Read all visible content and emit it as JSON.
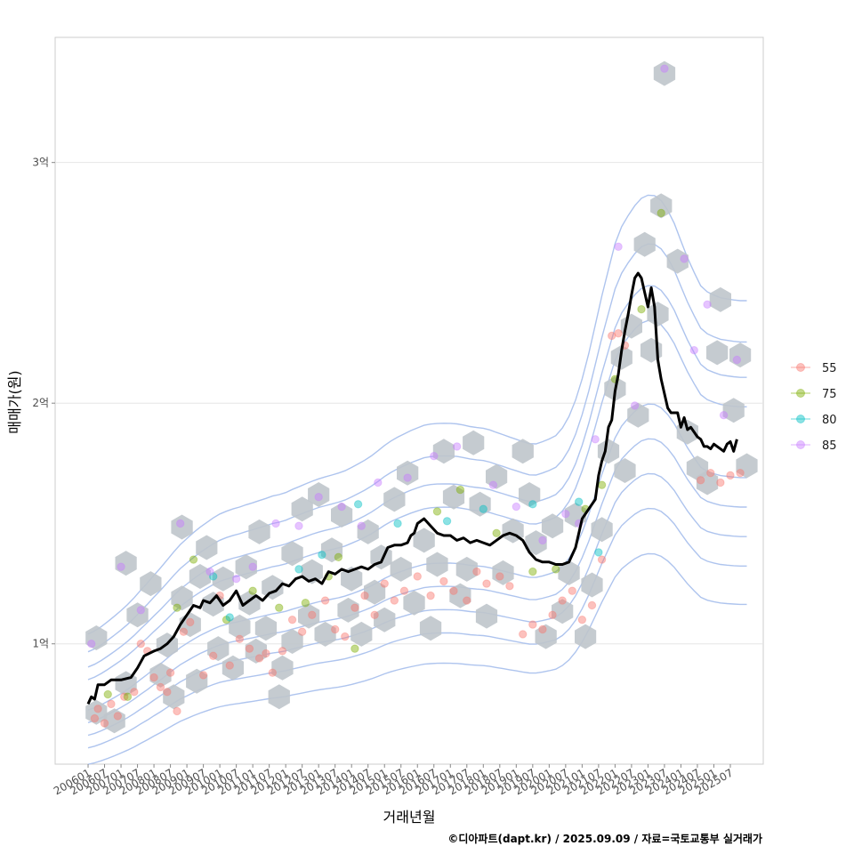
{
  "chart_data": {
    "type": "scatter",
    "title": "",
    "xlabel": "거래년월",
    "ylabel": "매매가(원)",
    "caption": "©디아파트(dapt.kr) / 2025.09.09 / 자료=국토교통부 실거래가",
    "x_tick_labels": [
      "200601",
      "200607",
      "200701",
      "200707",
      "200801",
      "200807",
      "200901",
      "200907",
      "201001",
      "201007",
      "201101",
      "201107",
      "201201",
      "201207",
      "201301",
      "201307",
      "201401",
      "201407",
      "201501",
      "201507",
      "201601",
      "201607",
      "201701",
      "201707",
      "201801",
      "201807",
      "201901",
      "201907",
      "202001",
      "202007",
      "202101",
      "202107",
      "202201",
      "202207",
      "202301",
      "202307",
      "202401",
      "202407",
      "202501",
      "202507"
    ],
    "y_ticks": [
      {
        "value": 100000000,
        "label": "1억"
      },
      {
        "value": 200000000,
        "label": "2억"
      },
      {
        "value": 300000000,
        "label": "3억"
      }
    ],
    "ylim": [
      50000000,
      352000000
    ],
    "xlim": [
      2005.0,
      2026.5
    ],
    "grid": true,
    "legend_position": "right",
    "legend": [
      {
        "label": "55",
        "color": "#F8766D"
      },
      {
        "label": "75",
        "color": "#7CAE00"
      },
      {
        "label": "80",
        "color": "#00BFC4"
      },
      {
        "label": "85",
        "color": "#C77CFF"
      }
    ],
    "hex_color": "#bfc5cb",
    "contour_color": "#aec4ee",
    "trend_line": {
      "color": "#000000",
      "x": [
        2006.0,
        2006.1,
        2006.2,
        2006.3,
        2006.5,
        2006.7,
        2007.0,
        2007.3,
        2007.5,
        2007.7,
        2008.0,
        2008.2,
        2008.4,
        2008.6,
        2008.8,
        2009.0,
        2009.2,
        2009.4,
        2009.5,
        2009.7,
        2009.9,
        2010.1,
        2010.3,
        2010.5,
        2010.7,
        2010.9,
        2011.1,
        2011.3,
        2011.5,
        2011.7,
        2011.9,
        2012.1,
        2012.3,
        2012.5,
        2012.7,
        2012.9,
        2013.1,
        2013.3,
        2013.5,
        2013.7,
        2013.9,
        2014.1,
        2014.3,
        2014.5,
        2014.7,
        2014.9,
        2015.1,
        2015.3,
        2015.5,
        2015.7,
        2015.8,
        2015.9,
        2016.0,
        2016.2,
        2016.4,
        2016.6,
        2016.8,
        2017.0,
        2017.2,
        2017.4,
        2017.6,
        2017.8,
        2018.0,
        2018.2,
        2018.4,
        2018.6,
        2018.8,
        2019.0,
        2019.2,
        2019.4,
        2019.6,
        2019.8,
        2020.0,
        2020.2,
        2020.4,
        2020.6,
        2020.8,
        2021.0,
        2021.2,
        2021.4,
        2021.5,
        2021.6,
        2021.7,
        2021.8,
        2021.9,
        2022.0,
        2022.1,
        2022.2,
        2022.3,
        2022.4,
        2022.5,
        2022.6,
        2022.7,
        2022.8,
        2022.9,
        2023.0,
        2023.1,
        2023.2,
        2023.3,
        2023.4,
        2023.5,
        2023.6,
        2023.7,
        2023.8,
        2023.9,
        2024.0,
        2024.1,
        2024.2,
        2024.3,
        2024.4,
        2024.5,
        2024.6,
        2024.7,
        2024.8,
        2024.9,
        2025.0,
        2025.1,
        2025.2,
        2025.3,
        2025.4,
        2025.5,
        2025.6,
        2025.7
      ],
      "y": [
        75000000,
        78000000,
        77000000,
        83000000,
        83000000,
        85000000,
        85000000,
        86000000,
        90000000,
        95000000,
        97000000,
        98000000,
        100000000,
        103000000,
        108000000,
        112000000,
        116000000,
        115000000,
        118000000,
        117000000,
        120000000,
        116000000,
        118000000,
        122000000,
        116000000,
        118000000,
        120000000,
        118000000,
        121000000,
        122000000,
        125000000,
        124000000,
        127000000,
        128000000,
        126000000,
        127000000,
        125000000,
        130000000,
        129000000,
        131000000,
        130000000,
        131000000,
        132000000,
        131000000,
        133000000,
        134000000,
        140000000,
        141000000,
        141000000,
        142000000,
        145000000,
        146000000,
        150000000,
        152000000,
        149000000,
        146000000,
        145000000,
        145000000,
        143000000,
        144000000,
        142000000,
        143000000,
        142000000,
        141000000,
        143000000,
        145000000,
        146000000,
        145000000,
        143000000,
        138000000,
        135000000,
        134000000,
        134000000,
        133000000,
        133000000,
        134000000,
        140000000,
        152000000,
        156000000,
        160000000,
        170000000,
        176000000,
        180000000,
        190000000,
        193000000,
        205000000,
        212000000,
        222000000,
        230000000,
        237000000,
        245000000,
        252000000,
        254000000,
        252000000,
        246000000,
        240000000,
        248000000,
        240000000,
        218000000,
        210000000,
        204000000,
        198000000,
        196000000,
        196000000,
        196000000,
        190000000,
        194000000,
        189000000,
        190000000,
        188000000,
        186000000,
        185000000,
        182000000,
        182000000,
        181000000,
        183000000,
        182000000,
        181000000,
        180000000,
        183000000,
        184000000,
        180000000,
        185000000
      ]
    },
    "hex_bins": [
      [
        2006.25,
        71500000
      ],
      [
        2006.25,
        102500000
      ],
      [
        2006.8,
        68000000
      ],
      [
        2007.15,
        83500000
      ],
      [
        2007.15,
        133500000
      ],
      [
        2007.5,
        112000000
      ],
      [
        2007.9,
        125000000
      ],
      [
        2008.2,
        87000000
      ],
      [
        2008.4,
        99500000
      ],
      [
        2008.6,
        78000000
      ],
      [
        2008.85,
        119000000
      ],
      [
        2008.85,
        148500000
      ],
      [
        2009.1,
        108000000
      ],
      [
        2009.3,
        84500000
      ],
      [
        2009.4,
        128000000
      ],
      [
        2009.6,
        140000000
      ],
      [
        2009.95,
        98000000
      ],
      [
        2009.8,
        116500000
      ],
      [
        2010.1,
        127000000
      ],
      [
        2010.4,
        90000000
      ],
      [
        2010.6,
        107000000
      ],
      [
        2010.8,
        132000000
      ],
      [
        2010.9,
        117000000
      ],
      [
        2011.1,
        97000000
      ],
      [
        2011.2,
        146500000
      ],
      [
        2011.4,
        106500000
      ],
      [
        2011.6,
        123500000
      ],
      [
        2011.8,
        78000000
      ],
      [
        2011.9,
        90000000
      ],
      [
        2012.2,
        137500000
      ],
      [
        2012.2,
        101000000
      ],
      [
        2012.5,
        156000000
      ],
      [
        2012.7,
        111500000
      ],
      [
        2012.8,
        130000000
      ],
      [
        2013.0,
        162000000
      ],
      [
        2013.2,
        104000000
      ],
      [
        2013.4,
        139000000
      ],
      [
        2013.7,
        153500000
      ],
      [
        2013.9,
        114000000
      ],
      [
        2014.0,
        127000000
      ],
      [
        2014.3,
        104000000
      ],
      [
        2014.5,
        146500000
      ],
      [
        2014.7,
        121500000
      ],
      [
        2014.9,
        136000000
      ],
      [
        2015.0,
        110000000
      ],
      [
        2015.3,
        160000000
      ],
      [
        2015.5,
        131000000
      ],
      [
        2015.7,
        171000000
      ],
      [
        2015.9,
        117000000
      ],
      [
        2016.2,
        143000000
      ],
      [
        2016.4,
        106500000
      ],
      [
        2016.6,
        133000000
      ],
      [
        2016.8,
        180000000
      ],
      [
        2017.1,
        161000000
      ],
      [
        2017.3,
        120000000
      ],
      [
        2017.5,
        131000000
      ],
      [
        2017.7,
        183500000
      ],
      [
        2017.9,
        158000000
      ],
      [
        2018.1,
        111500000
      ],
      [
        2018.4,
        169500000
      ],
      [
        2018.6,
        129500000
      ],
      [
        2018.9,
        147000000
      ],
      [
        2019.2,
        180000000
      ],
      [
        2019.4,
        162000000
      ],
      [
        2019.6,
        142000000
      ],
      [
        2019.9,
        103000000
      ],
      [
        2020.1,
        149000000
      ],
      [
        2020.4,
        113500000
      ],
      [
        2020.6,
        129500000
      ],
      [
        2020.8,
        153500000
      ],
      [
        2021.1,
        103000000
      ],
      [
        2021.3,
        124500000
      ],
      [
        2021.6,
        147500000
      ],
      [
        2021.8,
        180000000
      ],
      [
        2022.0,
        206000000
      ],
      [
        2022.2,
        219000000
      ],
      [
        2022.3,
        172000000
      ],
      [
        2022.5,
        232000000
      ],
      [
        2022.7,
        195000000
      ],
      [
        2022.9,
        266000000
      ],
      [
        2023.1,
        222000000
      ],
      [
        2023.3,
        237000000
      ],
      [
        2023.4,
        282000000
      ],
      [
        2023.5,
        337000000
      ],
      [
        2023.9,
        259000000
      ],
      [
        2024.2,
        188000000
      ],
      [
        2024.5,
        173000000
      ],
      [
        2024.8,
        167000000
      ],
      [
        2025.1,
        221000000
      ],
      [
        2025.2,
        243000000
      ],
      [
        2025.6,
        197000000
      ],
      [
        2025.8,
        220000000
      ],
      [
        2026.0,
        174000000
      ]
    ],
    "points": {
      "55": [
        [
          2006.2,
          69000000
        ],
        [
          2006.3,
          73000000
        ],
        [
          2006.5,
          67000000
        ],
        [
          2006.7,
          75000000
        ],
        [
          2006.9,
          70000000
        ],
        [
          2007.1,
          78000000
        ],
        [
          2007.4,
          80000000
        ],
        [
          2007.6,
          100000000
        ],
        [
          2007.8,
          97000000
        ],
        [
          2008.0,
          86000000
        ],
        [
          2008.2,
          82000000
        ],
        [
          2008.4,
          80000000
        ],
        [
          2008.5,
          88000000
        ],
        [
          2008.7,
          72000000
        ],
        [
          2008.9,
          105000000
        ],
        [
          2009.1,
          109000000
        ],
        [
          2009.5,
          87000000
        ],
        [
          2009.8,
          95000000
        ],
        [
          2010.0,
          120000000
        ],
        [
          2010.3,
          91000000
        ],
        [
          2010.6,
          102000000
        ],
        [
          2010.9,
          98000000
        ],
        [
          2011.2,
          94000000
        ],
        [
          2011.4,
          96000000
        ],
        [
          2011.6,
          88000000
        ],
        [
          2011.9,
          97000000
        ],
        [
          2012.2,
          110000000
        ],
        [
          2012.5,
          105000000
        ],
        [
          2012.8,
          112000000
        ],
        [
          2013.2,
          118000000
        ],
        [
          2013.5,
          106000000
        ],
        [
          2013.8,
          103000000
        ],
        [
          2014.1,
          115000000
        ],
        [
          2014.4,
          120000000
        ],
        [
          2014.7,
          112000000
        ],
        [
          2015.0,
          125000000
        ],
        [
          2015.3,
          118000000
        ],
        [
          2015.6,
          122000000
        ],
        [
          2016.0,
          128000000
        ],
        [
          2016.4,
          120000000
        ],
        [
          2016.8,
          126000000
        ],
        [
          2017.1,
          122000000
        ],
        [
          2017.5,
          118000000
        ],
        [
          2017.8,
          130000000
        ],
        [
          2018.1,
          125000000
        ],
        [
          2018.5,
          128000000
        ],
        [
          2018.8,
          124000000
        ],
        [
          2019.2,
          104000000
        ],
        [
          2019.5,
          108000000
        ],
        [
          2019.8,
          106000000
        ],
        [
          2020.1,
          112000000
        ],
        [
          2020.4,
          118000000
        ],
        [
          2020.7,
          122000000
        ],
        [
          2021.0,
          110000000
        ],
        [
          2021.3,
          116000000
        ],
        [
          2021.6,
          135000000
        ],
        [
          2021.9,
          228000000
        ],
        [
          2022.1,
          229000000
        ],
        [
          2022.3,
          224000000
        ],
        [
          2024.6,
          168000000
        ],
        [
          2024.9,
          171000000
        ],
        [
          2025.2,
          167000000
        ],
        [
          2025.5,
          170000000
        ],
        [
          2025.8,
          171000000
        ]
      ],
      "75": [
        [
          2006.6,
          79000000
        ],
        [
          2007.2,
          78000000
        ],
        [
          2008.7,
          115000000
        ],
        [
          2009.2,
          135000000
        ],
        [
          2010.2,
          110000000
        ],
        [
          2011.0,
          122000000
        ],
        [
          2011.8,
          115000000
        ],
        [
          2012.6,
          117000000
        ],
        [
          2013.3,
          128000000
        ],
        [
          2013.6,
          136000000
        ],
        [
          2014.1,
          98000000
        ],
        [
          2016.6,
          155000000
        ],
        [
          2017.3,
          164000000
        ],
        [
          2018.4,
          146000000
        ],
        [
          2019.5,
          130000000
        ],
        [
          2020.2,
          131000000
        ],
        [
          2021.1,
          156000000
        ],
        [
          2021.6,
          166000000
        ],
        [
          2022.0,
          210000000
        ],
        [
          2022.8,
          239000000
        ],
        [
          2023.4,
          279000000
        ]
      ],
      "80": [
        [
          2009.8,
          128000000
        ],
        [
          2010.3,
          111000000
        ],
        [
          2012.4,
          131000000
        ],
        [
          2013.1,
          137000000
        ],
        [
          2014.2,
          158000000
        ],
        [
          2015.4,
          150000000
        ],
        [
          2016.9,
          151000000
        ],
        [
          2018.0,
          156000000
        ],
        [
          2019.5,
          158000000
        ],
        [
          2020.9,
          159000000
        ],
        [
          2021.5,
          138000000
        ]
      ],
      "85": [
        [
          2006.1,
          100000000
        ],
        [
          2007.0,
          132000000
        ],
        [
          2007.6,
          114000000
        ],
        [
          2008.8,
          150000000
        ],
        [
          2009.7,
          130000000
        ],
        [
          2010.5,
          127000000
        ],
        [
          2011.0,
          132000000
        ],
        [
          2011.7,
          150000000
        ],
        [
          2012.4,
          149000000
        ],
        [
          2013.0,
          161000000
        ],
        [
          2013.7,
          157000000
        ],
        [
          2014.3,
          149000000
        ],
        [
          2014.8,
          167000000
        ],
        [
          2015.7,
          169000000
        ],
        [
          2016.5,
          178000000
        ],
        [
          2017.2,
          182000000
        ],
        [
          2018.3,
          166000000
        ],
        [
          2019.0,
          157000000
        ],
        [
          2019.8,
          143000000
        ],
        [
          2020.5,
          154000000
        ],
        [
          2020.9,
          150000000
        ],
        [
          2021.4,
          185000000
        ],
        [
          2022.1,
          265000000
        ],
        [
          2022.6,
          199000000
        ],
        [
          2023.5,
          339000000
        ],
        [
          2024.1,
          260000000
        ],
        [
          2024.4,
          222000000
        ],
        [
          2024.8,
          241000000
        ],
        [
          2025.3,
          195000000
        ],
        [
          2025.7,
          218000000
        ]
      ]
    }
  }
}
